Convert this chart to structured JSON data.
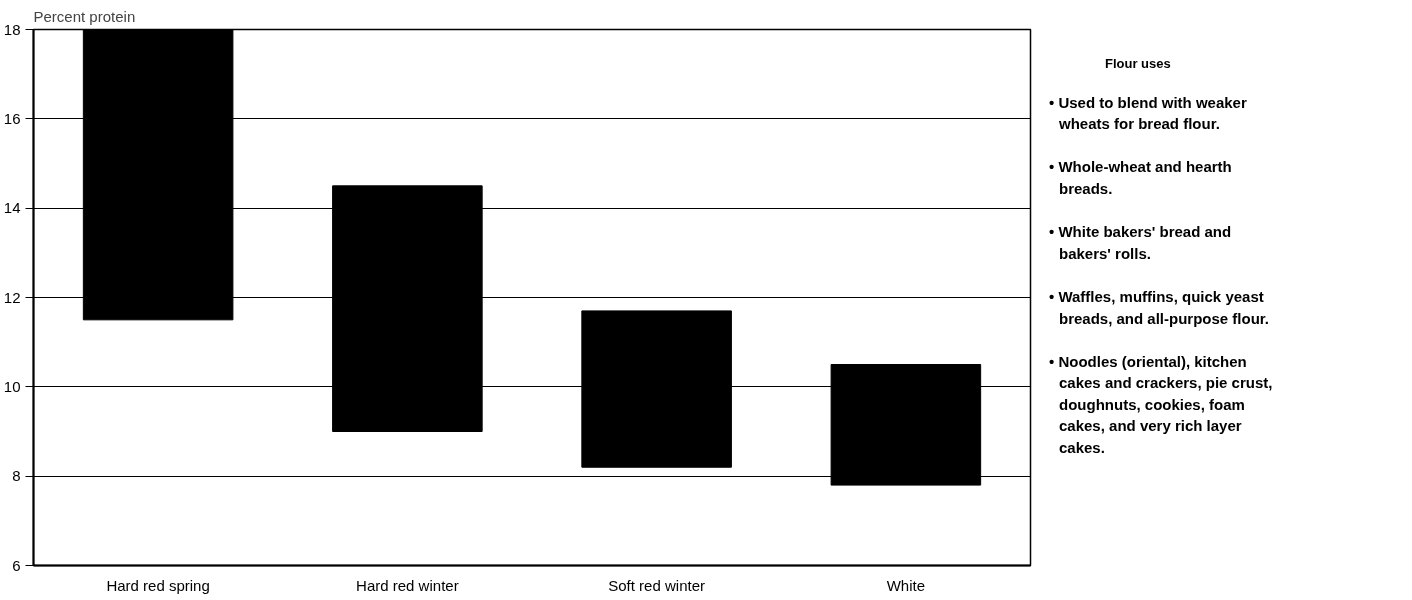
{
  "chart_data": {
    "type": "bar",
    "ylabel": "Percent protein",
    "categories": [
      "Hard red spring",
      "Hard red winter",
      "Soft red winter",
      "White"
    ],
    "base": [
      11.5,
      9.0,
      8.2,
      7.8
    ],
    "values": [
      6.5,
      5.5,
      3.5,
      2.7
    ],
    "color": "#000000",
    "ylim": [
      6,
      18
    ],
    "yticks": [
      6,
      8,
      10,
      12,
      14,
      16,
      18
    ],
    "grid": "y",
    "annotations": [
      "Flour uses",
      "• Used to blend with weaker wheats for bread flour.",
      "• Whole-wheat and hearth breads.",
      "• White bakers' bread and bakers' rolls.",
      "• Waffles, muffins, quick yeast breads, and all-purpose flour.",
      "• Noodles (oriental), kitchen cakes and crackers, pie crust, doughnuts, cookies, foam cakes, and very rich layer cakes."
    ]
  }
}
